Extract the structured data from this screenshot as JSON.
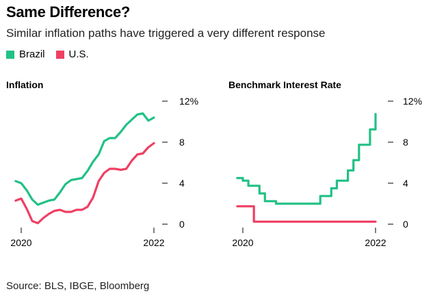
{
  "header": {
    "title": "Same Difference?",
    "subtitle": "Similar inflation paths have triggered a very different response"
  },
  "legend": [
    {
      "label": "Brazil",
      "color": "#21c185"
    },
    {
      "label": "U.S.",
      "color": "#ee3f62"
    }
  ],
  "footer": {
    "source": "Source: BLS, IBGE, Bloomberg"
  },
  "chart_data": [
    {
      "type": "line",
      "title": "Inflation",
      "x_ticks": [
        "2020",
        "2022"
      ],
      "y_ticks": [
        "0",
        "4",
        "8",
        "12%"
      ],
      "ylim": [
        0,
        12
      ],
      "xlim": [
        2020.0,
        2022.0
      ],
      "series": [
        {
          "name": "Brazil",
          "color": "#21c185",
          "x": [
            2019.917,
            2020.0,
            2020.083,
            2020.167,
            2020.25,
            2020.333,
            2020.417,
            2020.5,
            2020.583,
            2020.667,
            2020.75,
            2020.833,
            2020.917,
            2021.0,
            2021.083,
            2021.167,
            2021.25,
            2021.333,
            2021.417,
            2021.5,
            2021.583,
            2021.667,
            2021.75,
            2021.833,
            2021.917,
            2022.0
          ],
          "values": [
            4.2,
            4.0,
            3.3,
            2.4,
            1.9,
            2.1,
            2.3,
            2.4,
            3.1,
            3.9,
            4.3,
            4.4,
            4.5,
            5.2,
            6.1,
            6.8,
            8.1,
            8.4,
            8.4,
            9.0,
            9.7,
            10.2,
            10.7,
            10.8,
            10.1,
            10.4
          ]
        },
        {
          "name": "U.S.",
          "color": "#ee3f62",
          "x": [
            2019.917,
            2020.0,
            2020.083,
            2020.167,
            2020.25,
            2020.333,
            2020.417,
            2020.5,
            2020.583,
            2020.667,
            2020.75,
            2020.833,
            2020.917,
            2021.0,
            2021.083,
            2021.167,
            2021.25,
            2021.333,
            2021.417,
            2021.5,
            2021.583,
            2021.667,
            2021.75,
            2021.833,
            2021.917,
            2022.0
          ],
          "values": [
            2.3,
            2.5,
            1.5,
            0.3,
            0.1,
            0.6,
            1.0,
            1.3,
            1.4,
            1.2,
            1.2,
            1.4,
            1.4,
            1.7,
            2.6,
            4.2,
            5.0,
            5.4,
            5.4,
            5.3,
            5.4,
            6.2,
            6.8,
            6.9,
            7.5,
            7.9
          ]
        }
      ]
    },
    {
      "type": "line",
      "title": "Benchmark Interest Rate",
      "x_ticks": [
        "2020",
        "2022"
      ],
      "y_ticks": [
        "0",
        "4",
        "8",
        "12%"
      ],
      "ylim": [
        0,
        12
      ],
      "xlim": [
        2020.0,
        2022.0
      ],
      "series": [
        {
          "name": "Brazil",
          "color": "#21c185",
          "step": true,
          "x": [
            2019.917,
            2020.0,
            2020.083,
            2020.167,
            2020.25,
            2020.333,
            2020.417,
            2020.5,
            2020.583,
            2020.667,
            2020.75,
            2020.833,
            2020.917,
            2021.0,
            2021.083,
            2021.167,
            2021.25,
            2021.333,
            2021.417,
            2021.5,
            2021.583,
            2021.667,
            2021.75,
            2021.833,
            2021.917,
            2022.0
          ],
          "values": [
            4.5,
            4.25,
            3.75,
            3.75,
            3.0,
            2.25,
            2.25,
            2.0,
            2.0,
            2.0,
            2.0,
            2.0,
            2.0,
            2.0,
            2.0,
            2.75,
            2.75,
            3.5,
            4.25,
            4.25,
            5.25,
            6.25,
            7.75,
            7.75,
            9.25,
            10.75
          ]
        },
        {
          "name": "U.S.",
          "color": "#ee3f62",
          "step": true,
          "x": [
            2019.917,
            2020.0,
            2020.083,
            2020.167,
            2022.0
          ],
          "values": [
            1.75,
            1.75,
            1.75,
            0.25,
            0.25
          ]
        }
      ]
    }
  ]
}
